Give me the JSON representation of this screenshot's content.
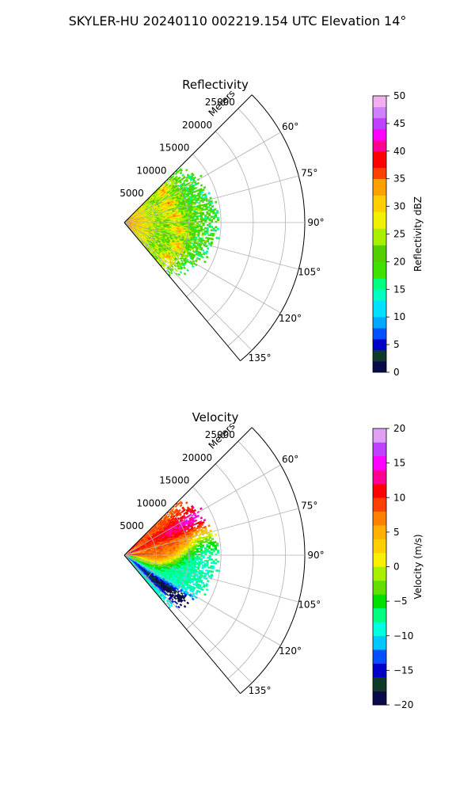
{
  "figure_title": "SKYLER-HU  20240110  002219.154 UTC Elevation 14°",
  "chart_data": [
    {
      "type": "polar-sector",
      "title": "Reflectivity",
      "radial_label": "Meters",
      "radial_ticks": [
        5000,
        10000,
        15000,
        20000,
        25000
      ],
      "radial_max": 28000,
      "azimuth_ticks": [
        "60°",
        "75°",
        "90°",
        "105°",
        "120°",
        "135°"
      ],
      "azimuth_values": [
        60,
        75,
        90,
        105,
        120,
        135
      ],
      "azimuth_range": [
        45,
        140
      ],
      "data_extent_m": 14000,
      "grid": true,
      "colorbar": {
        "label": "Reflectivity dBZ",
        "range": [
          0,
          50
        ],
        "ticks": [
          "0",
          "5",
          "10",
          "15",
          "20",
          "25",
          "30",
          "35",
          "40",
          "45",
          "50"
        ],
        "tick_values": [
          0,
          5,
          10,
          15,
          20,
          25,
          30,
          35,
          40,
          45,
          50
        ],
        "stops": [
          {
            "v": 0,
            "c": "#0a0a4a"
          },
          {
            "v": 2,
            "c": "#0f3a2a"
          },
          {
            "v": 4,
            "c": "#0000c8"
          },
          {
            "v": 6,
            "c": "#0050ff"
          },
          {
            "v": 8,
            "c": "#00a8ff"
          },
          {
            "v": 10,
            "c": "#00e0ff"
          },
          {
            "v": 13,
            "c": "#00ffc0"
          },
          {
            "v": 15,
            "c": "#00ff80"
          },
          {
            "v": 17,
            "c": "#40e000"
          },
          {
            "v": 20,
            "c": "#50d000"
          },
          {
            "v": 23,
            "c": "#a8f000"
          },
          {
            "v": 26,
            "c": "#f0f000"
          },
          {
            "v": 29,
            "c": "#ffd000"
          },
          {
            "v": 32,
            "c": "#ffa000"
          },
          {
            "v": 35,
            "c": "#ff4000"
          },
          {
            "v": 37,
            "c": "#ff0000"
          },
          {
            "v": 40,
            "c": "#ff0090"
          },
          {
            "v": 42,
            "c": "#ff00ff"
          },
          {
            "v": 44,
            "c": "#c040ff"
          },
          {
            "v": 46,
            "c": "#d080ff"
          },
          {
            "v": 48,
            "c": "#f0b0f0"
          },
          {
            "v": 50,
            "c": "#ffe0ff"
          }
        ]
      }
    },
    {
      "type": "polar-sector",
      "title": "Velocity",
      "radial_label": "Meters",
      "radial_ticks": [
        5000,
        10000,
        15000,
        20000,
        25000
      ],
      "radial_max": 28000,
      "azimuth_ticks": [
        "60°",
        "75°",
        "90°",
        "105°",
        "120°",
        "135°"
      ],
      "azimuth_values": [
        60,
        75,
        90,
        105,
        120,
        135
      ],
      "azimuth_range": [
        45,
        140
      ],
      "data_extent_m": 14000,
      "grid": true,
      "colorbar": {
        "label": "Velocity (m/s)",
        "range": [
          -20,
          20
        ],
        "ticks": [
          "−20",
          "−15",
          "−10",
          "−5",
          "0",
          "5",
          "10",
          "15",
          "20"
        ],
        "tick_values": [
          -20,
          -15,
          -10,
          -5,
          0,
          5,
          10,
          15,
          20
        ],
        "stops": [
          {
            "v": -20,
            "c": "#0a0a4a"
          },
          {
            "v": -18,
            "c": "#0f3a2a"
          },
          {
            "v": -16,
            "c": "#0000c8"
          },
          {
            "v": -14,
            "c": "#0050ff"
          },
          {
            "v": -12,
            "c": "#00c8ff"
          },
          {
            "v": -10,
            "c": "#00ffe0"
          },
          {
            "v": -8,
            "c": "#00ff80"
          },
          {
            "v": -6,
            "c": "#00e000"
          },
          {
            "v": -4,
            "c": "#60e000"
          },
          {
            "v": -2,
            "c": "#a8f000"
          },
          {
            "v": 0,
            "c": "#f8f000"
          },
          {
            "v": 2,
            "c": "#ffd000"
          },
          {
            "v": 4,
            "c": "#ffb000"
          },
          {
            "v": 6,
            "c": "#ff8000"
          },
          {
            "v": 8,
            "c": "#ff4000"
          },
          {
            "v": 10,
            "c": "#ff0000"
          },
          {
            "v": 12,
            "c": "#ff0090"
          },
          {
            "v": 14,
            "c": "#ff00ff"
          },
          {
            "v": 16,
            "c": "#c040ff"
          },
          {
            "v": 18,
            "c": "#e0a0f8"
          },
          {
            "v": 20,
            "c": "#ffe0ff"
          }
        ]
      }
    }
  ]
}
